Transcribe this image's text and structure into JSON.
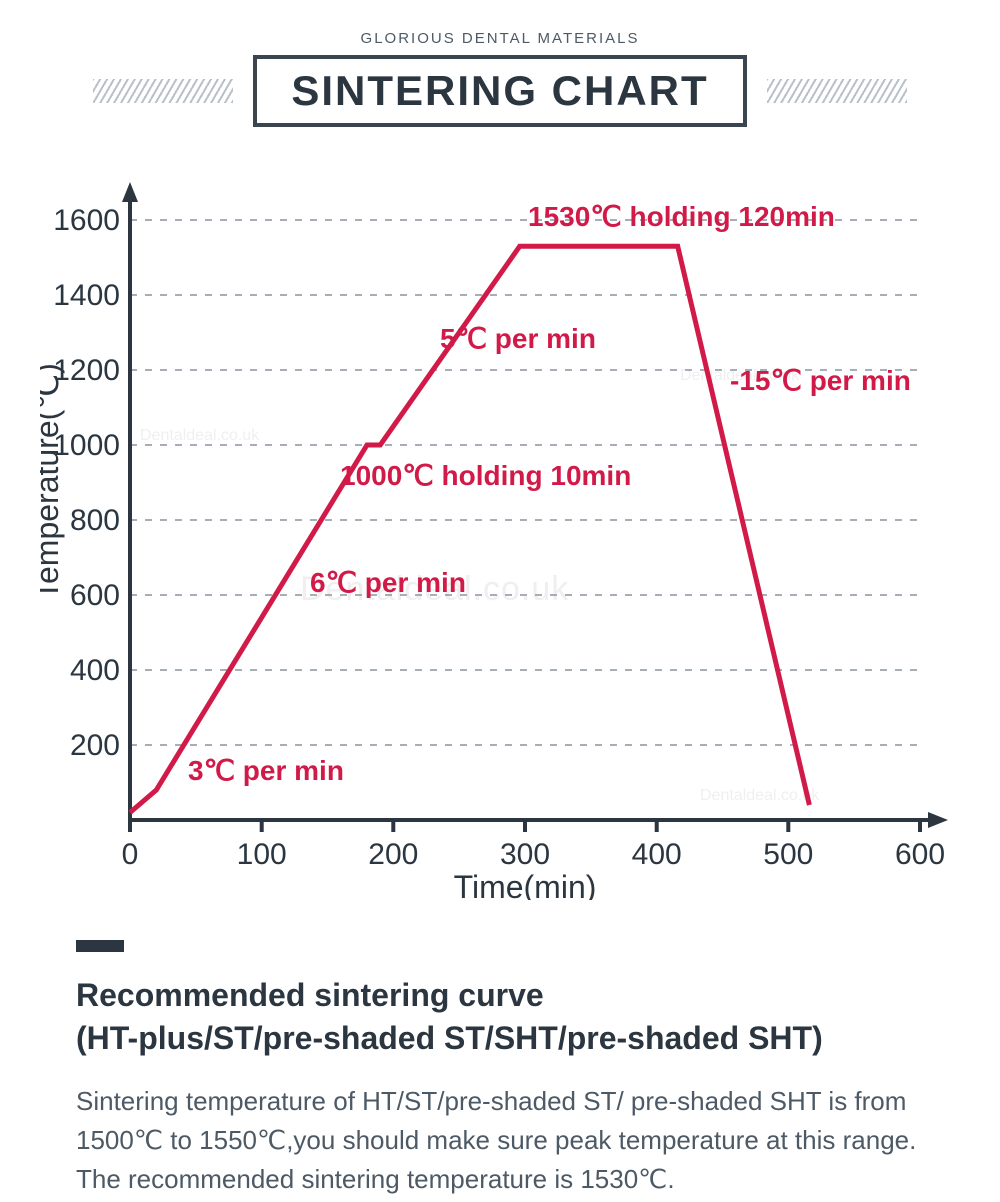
{
  "header": {
    "supertitle": "GLORIOUS DENTAL MATERIALS",
    "title": "SINTERING CHART"
  },
  "chart": {
    "type": "line",
    "xlabel": "Time(min)",
    "ylabel": "Temperature(℃)",
    "xlim": [
      0,
      600
    ],
    "ylim": [
      0,
      1600
    ],
    "xtick_step": 100,
    "ytick_step": 200,
    "xticks": [
      0,
      100,
      200,
      300,
      400,
      500,
      600
    ],
    "yticks": [
      200,
      400,
      600,
      800,
      1000,
      1200,
      1400,
      1600
    ],
    "line_color": "#d21a49",
    "line_width": 5,
    "background_color": "#ffffff",
    "axis_color": "#2b3640",
    "grid_color": "#9aa4af",
    "grid_dash": "7 8",
    "points": [
      {
        "x": 0,
        "y": 20
      },
      {
        "x": 20,
        "y": 80
      },
      {
        "x": 180,
        "y": 1000
      },
      {
        "x": 190,
        "y": 1000
      },
      {
        "x": 296,
        "y": 1530
      },
      {
        "x": 416,
        "y": 1530
      },
      {
        "x": 516,
        "y": 40
      }
    ],
    "annotations": [
      {
        "key": "a1",
        "text": "3℃ per min"
      },
      {
        "key": "a2",
        "text": "6℃ per min"
      },
      {
        "key": "a3",
        "text": "1000℃ holding 10min"
      },
      {
        "key": "a4",
        "text": "5℃ per min"
      },
      {
        "key": "a5",
        "text": "1530℃ holding 120min"
      },
      {
        "key": "a6",
        "text": "-15℃ per min"
      }
    ],
    "watermark": "Dentaldeal.co.uk"
  },
  "below": {
    "subtitle_line1": "Recommended sintering curve",
    "subtitle_line2": "(HT-plus/ST/pre-shaded ST/SHT/pre-shaded SHT)",
    "body": "Sintering temperature of HT/ST/pre-shaded ST/ pre-shaded SHT is from 1500℃ to 1550℃,you should make sure peak temperature at this range. The recommended sintering temperature is 1530℃."
  }
}
